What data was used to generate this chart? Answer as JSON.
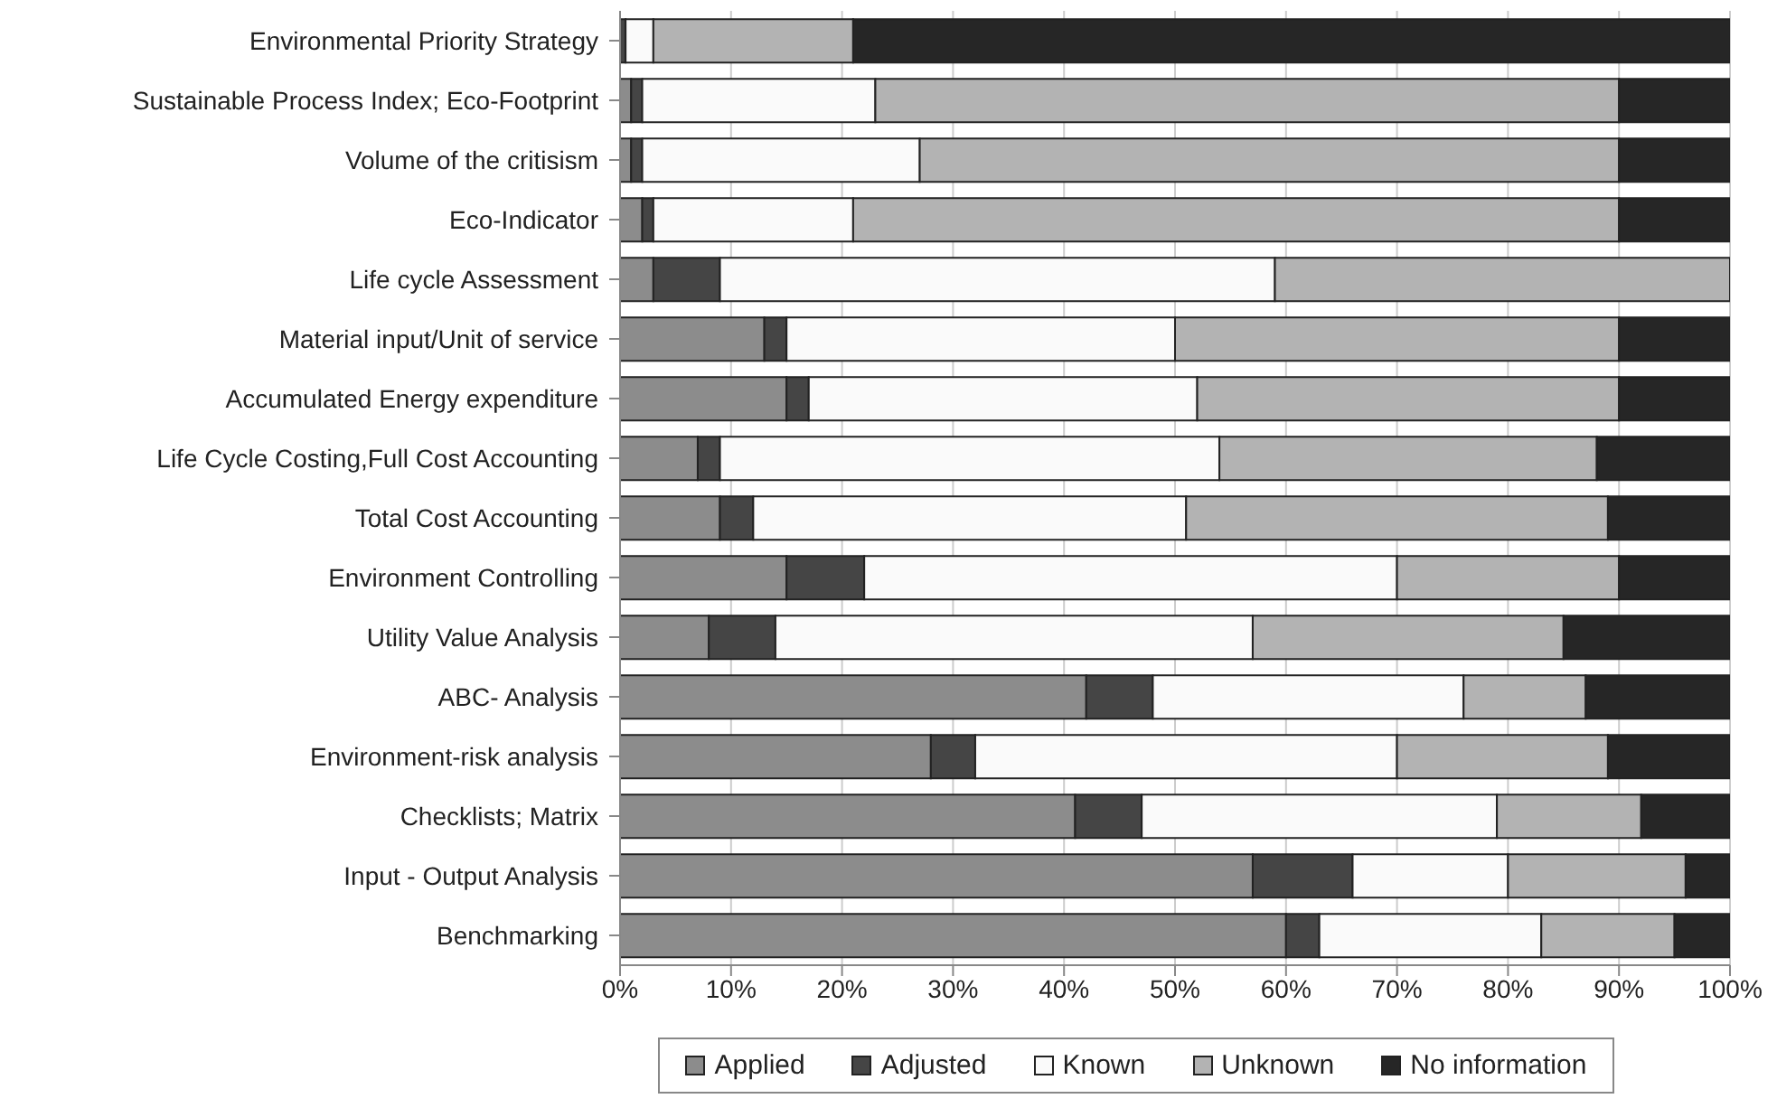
{
  "chart_data": {
    "type": "bar",
    "orientation": "horizontal",
    "stacked": true,
    "categories": [
      "Environmental Priority Strategy",
      "Sustainable Process Index; Eco-Footprint",
      "Volume of the critisism",
      "Eco-Indicator",
      "Life cycle Assessment",
      "Material input/Unit of service",
      "Accumulated Energy expenditure",
      "Life Cycle Costing,Full Cost Accounting",
      "Total Cost Accounting",
      "Environment Controlling",
      "Utility Value Analysis",
      "ABC- Analysis",
      "Environment-risk analysis",
      "Checklists; Matrix",
      "Input - Output Analysis",
      "Benchmarking"
    ],
    "series": [
      {
        "name": "Applied",
        "color": "#8c8c8c",
        "values": [
          0,
          1,
          1,
          2,
          3,
          13,
          15,
          7,
          9,
          15,
          8,
          42,
          28,
          41,
          57,
          60
        ]
      },
      {
        "name": "Adjusted",
        "color": "#454545",
        "values": [
          0.5,
          1,
          1,
          1,
          6,
          2,
          2,
          2,
          3,
          7,
          6,
          6,
          4,
          6,
          9,
          3
        ]
      },
      {
        "name": "Known",
        "color": "#fafafa",
        "values": [
          2.5,
          21,
          25,
          18,
          50,
          35,
          35,
          45,
          39,
          48,
          43,
          28,
          38,
          32,
          14,
          20
        ]
      },
      {
        "name": "Unknown",
        "color": "#b3b3b3",
        "values": [
          18,
          67,
          63,
          69,
          41,
          40,
          38,
          34,
          38,
          20,
          28,
          11,
          19,
          13,
          16,
          12
        ]
      },
      {
        "name": "No information",
        "color": "#262626",
        "values": [
          79,
          10,
          10,
          10,
          0,
          10,
          10,
          12,
          11,
          10,
          15,
          13,
          11,
          8,
          4,
          5
        ]
      }
    ],
    "xlim": [
      0,
      100
    ],
    "xticks": [
      {
        "value": 0,
        "label": "0%"
      },
      {
        "value": 10,
        "label": "10%"
      },
      {
        "value": 20,
        "label": "20%"
      },
      {
        "value": 30,
        "label": "30%"
      },
      {
        "value": 40,
        "label": "40%"
      },
      {
        "value": 50,
        "label": "50%"
      },
      {
        "value": 60,
        "label": "60%"
      },
      {
        "value": 70,
        "label": "70%"
      },
      {
        "value": 80,
        "label": "80%"
      },
      {
        "value": 90,
        "label": "90%"
      },
      {
        "value": 100,
        "label": "100%"
      }
    ],
    "grid": "x",
    "legend": "bottom"
  }
}
